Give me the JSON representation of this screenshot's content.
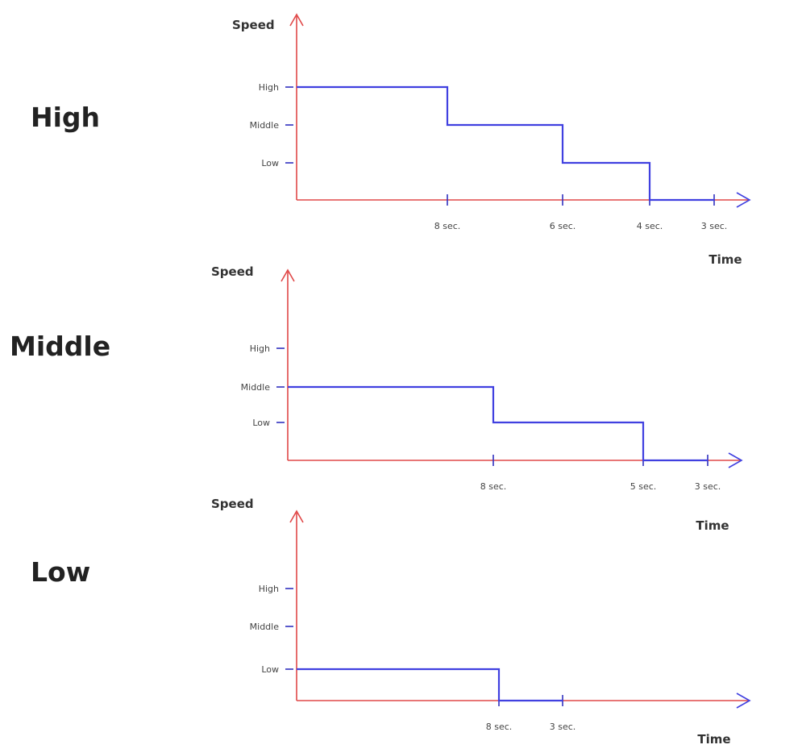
{
  "colors": {
    "axis": "#e04848",
    "line": "#4040e0",
    "tick": "#3030c0"
  },
  "levels": [
    "Low",
    "Middle",
    "High"
  ],
  "chart_data": [
    {
      "type": "line",
      "title": "High",
      "ylabel": "Speed",
      "xlabel": "Time",
      "y_ticks": [
        "High",
        "Middle",
        "Low"
      ],
      "x_ticks": [
        "8 sec.",
        "6 sec.",
        "4 sec.",
        "3 sec."
      ],
      "series": [
        {
          "steps": [
            "High",
            "Middle",
            "Low",
            "Off"
          ]
        }
      ]
    },
    {
      "type": "line",
      "title": "Middle",
      "ylabel": "Speed",
      "xlabel": "Time",
      "y_ticks": [
        "High",
        "Middle",
        "Low"
      ],
      "x_ticks": [
        "8 sec.",
        "5 sec.",
        "3 sec."
      ],
      "series": [
        {
          "steps": [
            "Middle",
            "Low",
            "Off"
          ]
        }
      ]
    },
    {
      "type": "line",
      "title": "Low",
      "ylabel": "Speed",
      "xlabel": "Time",
      "y_ticks": [
        "High",
        "Middle",
        "Low"
      ],
      "x_ticks": [
        "8 sec.",
        "3 sec."
      ],
      "series": [
        {
          "steps": [
            "Low",
            "Off"
          ]
        }
      ]
    }
  ]
}
